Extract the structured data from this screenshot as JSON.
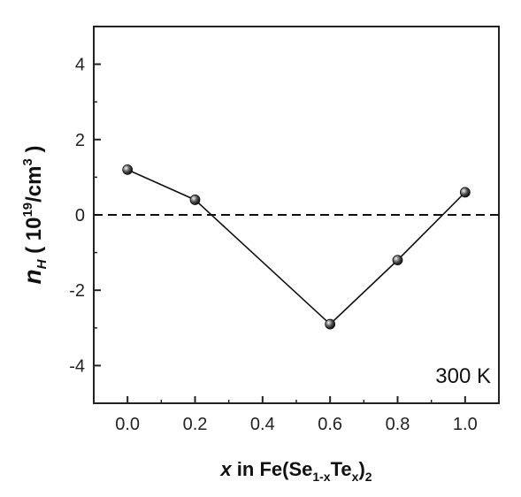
{
  "chart_data": {
    "type": "line",
    "title": "",
    "xlabel": {
      "symbol": "x",
      "text_in": " in Fe(Se",
      "sub1": "1-x",
      "text_te": "Te",
      "sub2": "x",
      "text_close": ")",
      "sub3": "2"
    },
    "ylabel": {
      "symbol": "n",
      "sub": "H",
      "text_open": " ( 10",
      "sup1": "19",
      "text_unit": "/cm",
      "sup2": "3",
      "text_close": " )"
    },
    "xlim": [
      -0.1,
      1.1
    ],
    "ylim": [
      -5,
      5
    ],
    "x_ticks": [
      "0.0",
      "0.2",
      "0.4",
      "0.6",
      "0.8",
      "1.0"
    ],
    "y_ticks": [
      "-4",
      "-2",
      "0",
      "2",
      "4"
    ],
    "series": [
      {
        "x": [
          0.0,
          0.2,
          0.6,
          0.8,
          1.0
        ],
        "y": [
          1.2,
          0.4,
          -2.9,
          -1.2,
          0.6
        ]
      }
    ],
    "reference_line": {
      "y": 0,
      "style": "dashed"
    },
    "annotation": "300 K",
    "grid": false,
    "colors": {
      "line": "#111111",
      "marker": "#333333"
    }
  }
}
